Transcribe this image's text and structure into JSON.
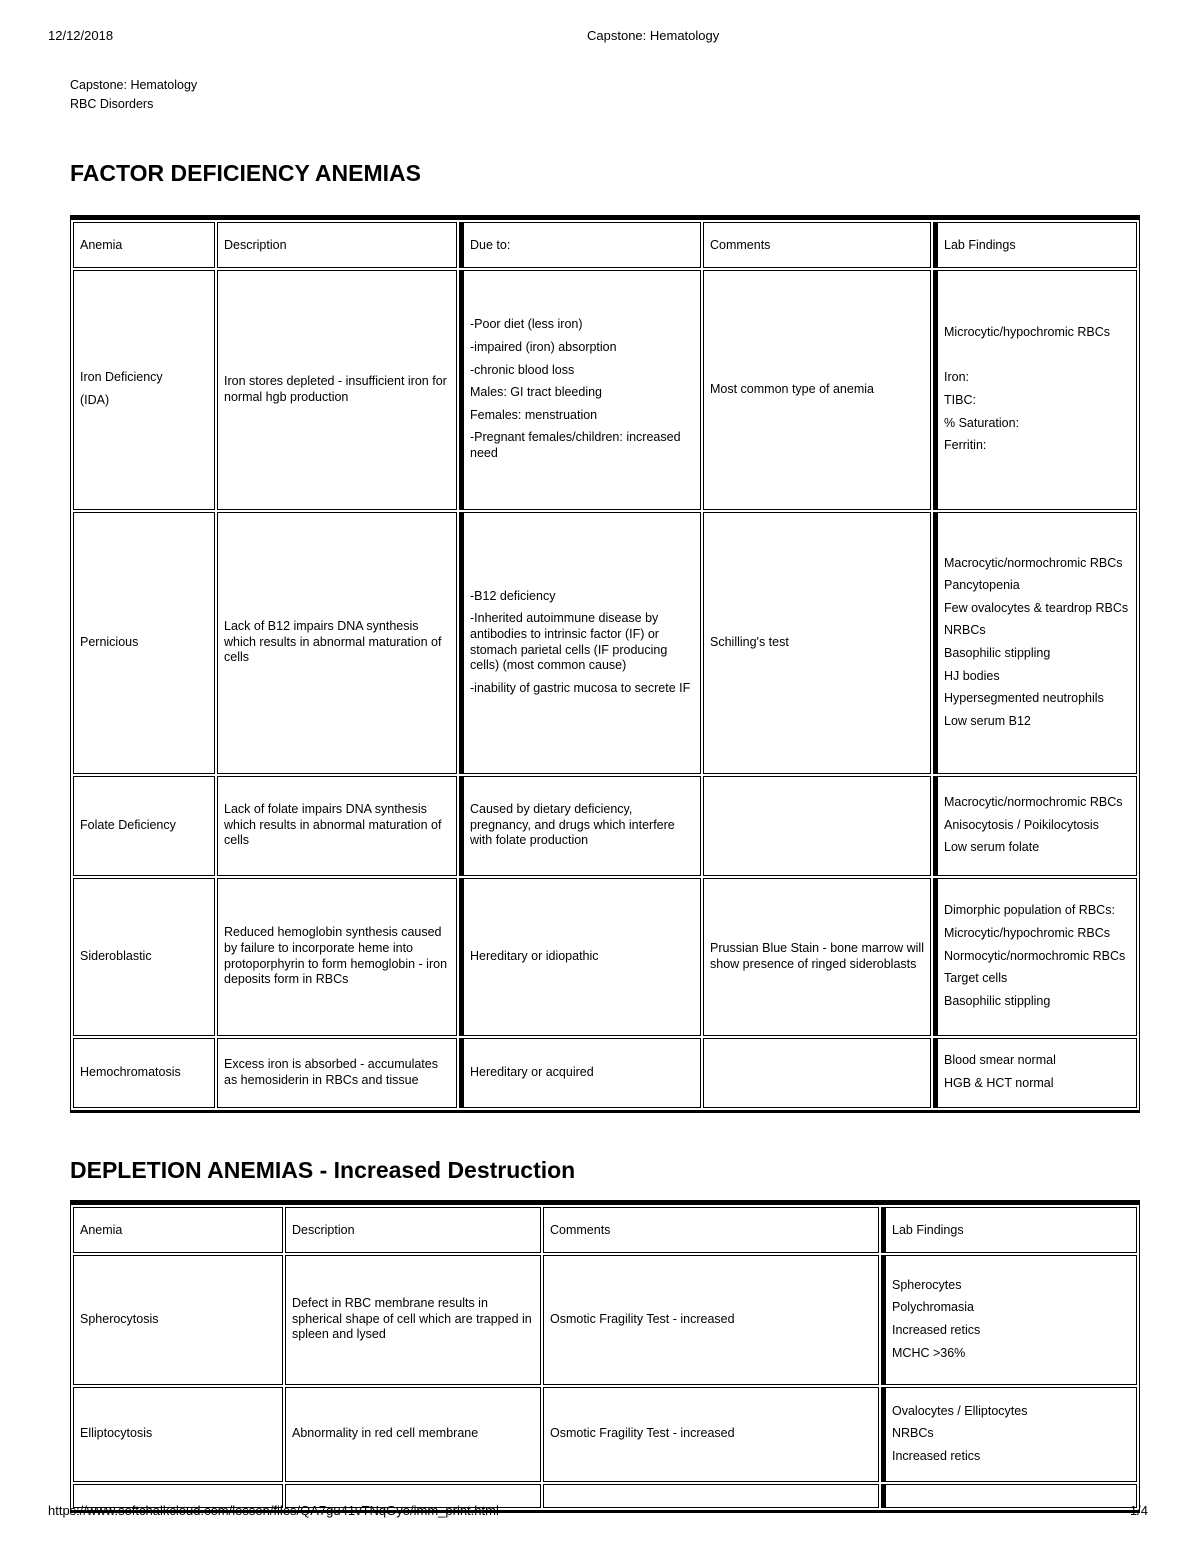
{
  "print_header": {
    "date": "12/12/2018",
    "title": "Capstone: Hematology"
  },
  "document": {
    "title": "Capstone: Hematology",
    "subtitle": "RBC Disorders"
  },
  "sections": [
    {
      "heading": "FACTOR DEFICIENCY ANEMIAS",
      "columns": [
        "Anemia",
        "Description",
        "Due to:",
        "Comments",
        "Lab Findings"
      ],
      "rows": [
        [
          [
            "Iron Deficiency",
            "(IDA)"
          ],
          [
            "Iron stores depleted - insufficient iron for normal hgb production"
          ],
          [
            "-Poor diet (less iron)",
            "-impaired (iron) absorption",
            "-chronic blood loss",
            "Males: GI tract bleeding",
            "Females: menstruation",
            "-Pregnant females/children: increased need"
          ],
          [
            "Most common type of anemia"
          ],
          [
            "Microcytic/hypochromic RBCs",
            "",
            "Iron:",
            "TIBC:",
            "% Saturation:",
            "Ferritin:"
          ]
        ],
        [
          [
            "Pernicious"
          ],
          [
            "Lack of B12 impairs DNA synthesis which results in abnormal maturation of cells"
          ],
          [
            "-B12 deficiency",
            "-Inherited autoimmune disease by antibodies to intrinsic factor (IF) or stomach parietal cells (IF producing cells) (most common cause)",
            "-inability of gastric mucosa to secrete IF"
          ],
          [
            "Schilling's test"
          ],
          [
            "Macrocytic/normochromic RBCs",
            "Pancytopenia",
            "Few ovalocytes & teardrop RBCs",
            "NRBCs",
            "Basophilic stippling",
            "HJ bodies",
            "Hypersegmented neutrophils",
            "Low serum B12"
          ]
        ],
        [
          [
            "Folate Deficiency"
          ],
          [
            "Lack of folate impairs DNA synthesis which results in abnormal maturation of cells"
          ],
          [
            "Caused by dietary deficiency, pregnancy, and drugs which interfere with folate production"
          ],
          [],
          [
            "Macrocytic/normochromic RBCs",
            "Anisocytosis / Poikilocytosis",
            "Low serum folate"
          ]
        ],
        [
          [
            "Sideroblastic"
          ],
          [
            "Reduced hemoglobin synthesis caused by failure to incorporate heme into protoporphyrin to form hemoglobin - iron deposits form in RBCs"
          ],
          [
            "Hereditary or idiopathic"
          ],
          [
            "Prussian Blue Stain - bone marrow will show presence of ringed sideroblasts"
          ],
          [
            "Dimorphic population of RBCs:",
            "Microcytic/hypochromic RBCs",
            "Normocytic/normochromic RBCs",
            "Target cells",
            "Basophilic stippling"
          ]
        ],
        [
          [
            "Hemochromatosis"
          ],
          [
            "Excess iron is absorbed - accumulates as hemosiderin in RBCs and tissue"
          ],
          [
            "Hereditary or acquired"
          ],
          [],
          [
            "Blood smear normal",
            "HGB & HCT normal"
          ]
        ]
      ]
    },
    {
      "heading": "DEPLETION ANEMIAS - Increased Destruction",
      "columns": [
        "Anemia",
        "Description",
        "Comments",
        "Lab Findings"
      ],
      "rows": [
        [
          [
            "Spherocytosis"
          ],
          [
            "Defect in RBC membrane results in spherical shape of cell which are trapped in spleen and lysed"
          ],
          [
            "Osmotic Fragility Test - increased"
          ],
          [
            "Spherocytes",
            "Polychromasia",
            "Increased retics",
            "MCHC >36%"
          ]
        ],
        [
          [
            "Elliptocytosis"
          ],
          [
            "Abnormality in red cell membrane"
          ],
          [
            "Osmotic Fragility Test - increased"
          ],
          [
            "Ovalocytes / Elliptocytes",
            "NRBCs",
            "Increased retics"
          ]
        ],
        [
          [],
          [],
          [],
          []
        ]
      ]
    }
  ],
  "footer": {
    "url": "https://www.softchalkcloud.com/lesson/files/QA7gu41vTNqGyo/imm_print.html",
    "page_indicator": "1/4"
  }
}
